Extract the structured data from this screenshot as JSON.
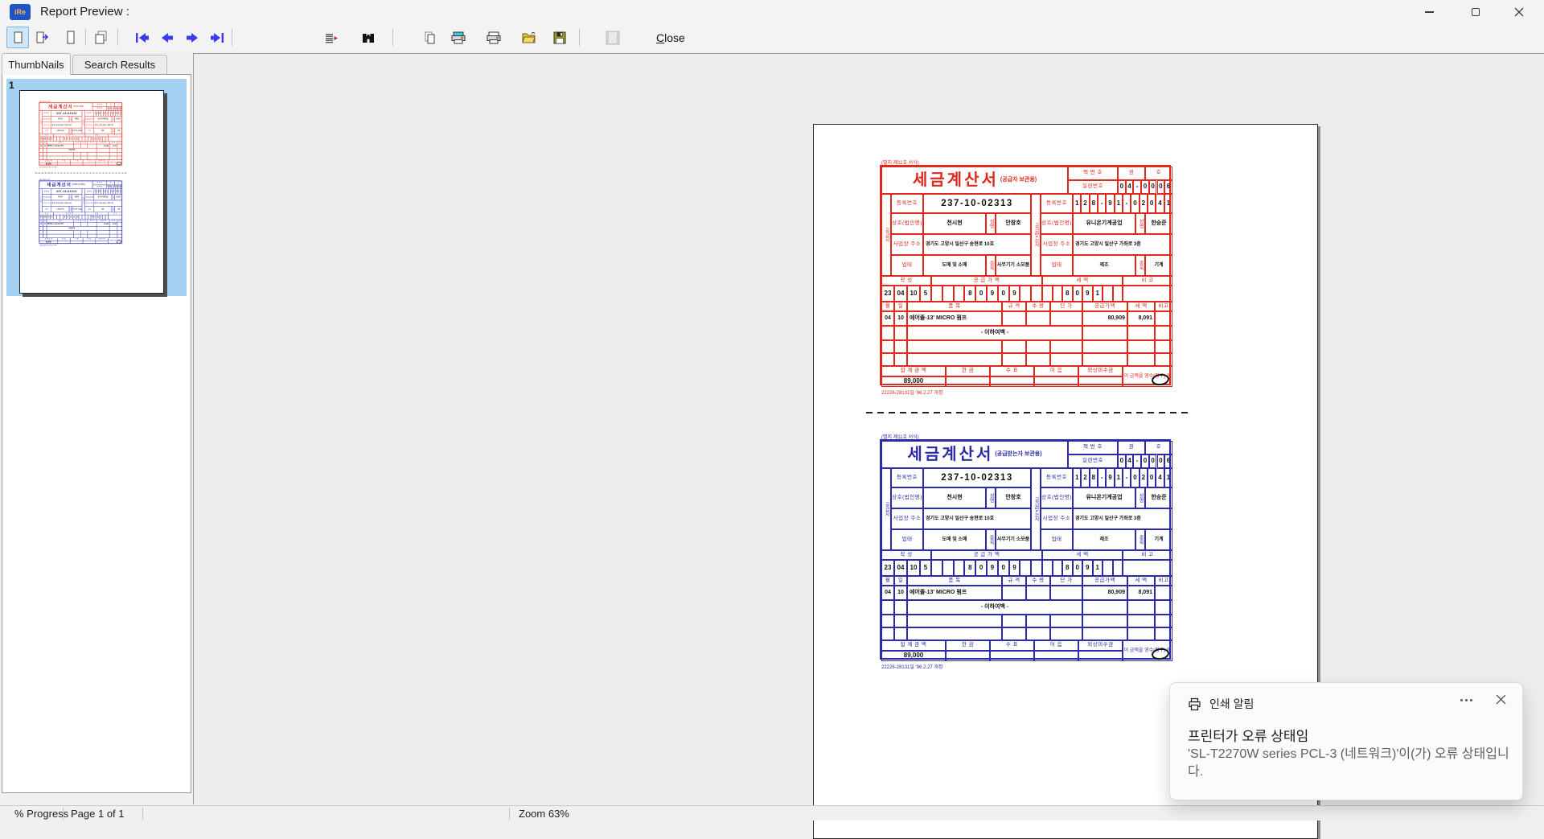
{
  "window": {
    "title": "Report Preview :",
    "app_icon_text": "iRe"
  },
  "toolbar": {
    "close_label": "Close",
    "icons": [
      "view-single-page",
      "view-facing-pages",
      "view-page-tall",
      "view-multi-page",
      "nav-first",
      "nav-prev",
      "nav-next",
      "nav-last",
      "goto-page",
      "find-binoculars",
      "export-page",
      "print-setup",
      "print",
      "open-report",
      "save-report",
      "mail-disabled"
    ]
  },
  "tabs": [
    {
      "label": "ThumbNails",
      "active": true
    },
    {
      "label": "Search Results",
      "active": false
    }
  ],
  "thumbnail_panel": {
    "page_number": "1"
  },
  "statusbar": {
    "progress": "% Progress",
    "page": "Page 1 of 1",
    "zoom": "Zoom 63%"
  },
  "notification": {
    "app": "인쇄 알림",
    "title": "프린터가 오류 상태임",
    "body": "'SL-T2270W series PCL-3 (네트워크)'이(가) 오류 상태입니다."
  },
  "colors": {
    "red_form": "#e0281c",
    "blue_form": "#2b2ba8",
    "selection": "#a5d1f3",
    "nav_arrow": "#3a3af0"
  },
  "forms": [
    {
      "id": "red",
      "color_key": "red_form",
      "copy_label": "(공급자 보관용)"
    },
    {
      "id": "blue",
      "color_key": "blue_form",
      "copy_label": "(공급받는자 보관용)"
    }
  ],
  "form_template": {
    "ref_label": "(별지 제11호 서식)",
    "title": "세금계산서",
    "book_no_label": "책 번 호",
    "book_kwon": "권",
    "book_ho": "호",
    "serial_label": "일련번호",
    "serial_digits": [
      "0",
      "4",
      "-",
      "0",
      "0",
      "0",
      "6"
    ],
    "supplier_side_label": "공급자",
    "buyer_side_label": "공급받는자",
    "reg_label": "등록번호",
    "reg_value": "237-10-02313",
    "buyer_reg_digits": [
      "1",
      "2",
      "8",
      "-",
      "9",
      "1",
      "-",
      "0",
      "2",
      "0",
      "4",
      "1"
    ],
    "company_label": "상호(법인명)",
    "name_label": "성명",
    "addr_label": "사업장 주소",
    "biz_type_label": "업태",
    "biz_item_label": "종목",
    "supplier": {
      "company": "천시현",
      "name": "안창호",
      "address": "경기도 고양시 일산구 송현로 10호",
      "biz_type": "도매 및 소매",
      "biz_item": "사무기기 소모품"
    },
    "buyer": {
      "company": "유니온기계공업",
      "name": "한승준",
      "address": "경기도 고양시 일산구 가좌로 3층",
      "biz_type": "제조",
      "biz_item": "기계"
    },
    "write_label": "작 성",
    "supply_label": "공 급 가 액",
    "tax_label": "세 액",
    "note_label": "비 고",
    "date_year": "23",
    "date_month": "04",
    "date_day": "10",
    "blank_count": "5",
    "supply_digits": [
      "",
      "",
      "",
      "8",
      "0",
      "9",
      "0",
      "9",
      "",
      ""
    ],
    "tax_digits": [
      "",
      "",
      "8",
      "0",
      "9",
      "1",
      "",
      ""
    ],
    "item_header": [
      "월",
      "일",
      "품 목",
      "규 격",
      "수 량",
      "단 가",
      "공급가액",
      "세 액",
      "비고"
    ],
    "item": {
      "month": "04",
      "day": "10",
      "desc": "에어졸-13' MICRO 펌프",
      "supply": "80,909",
      "tax": "8,091"
    },
    "blank_note": "- 이하여백 -",
    "total_labels": [
      "합 계 금 액",
      "현 금",
      "수 표",
      "어 음",
      "외상미수금"
    ],
    "total_value": "89,000",
    "receipt_text": "이 금액을 영수(청구) 함",
    "footer_ref": "22226-28131일 '96.2.27 개정"
  }
}
